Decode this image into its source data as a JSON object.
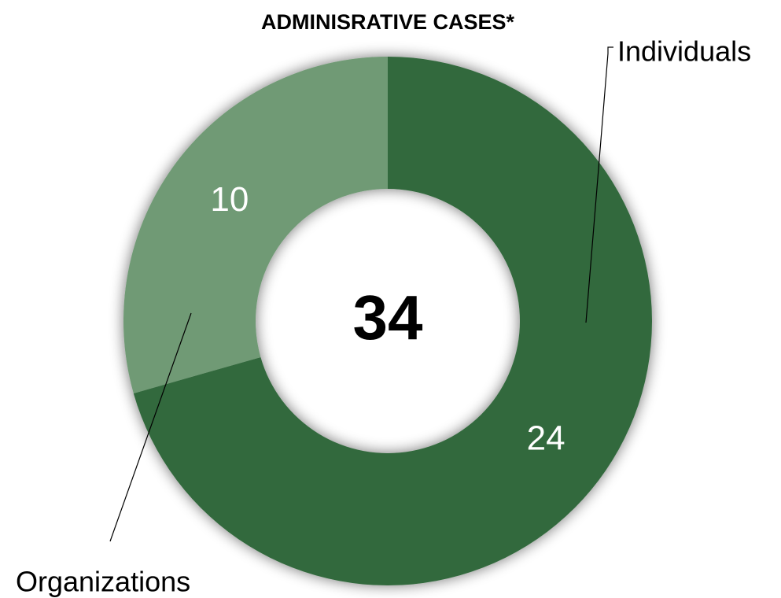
{
  "chart_data": {
    "type": "donut",
    "title": "ADMINISRATIVE CASES*",
    "categories": [
      "Individuals",
      "Organizations"
    ],
    "values": [
      24,
      10
    ],
    "colors": [
      "#33693d",
      "#6f9a74"
    ],
    "total": 34
  }
}
